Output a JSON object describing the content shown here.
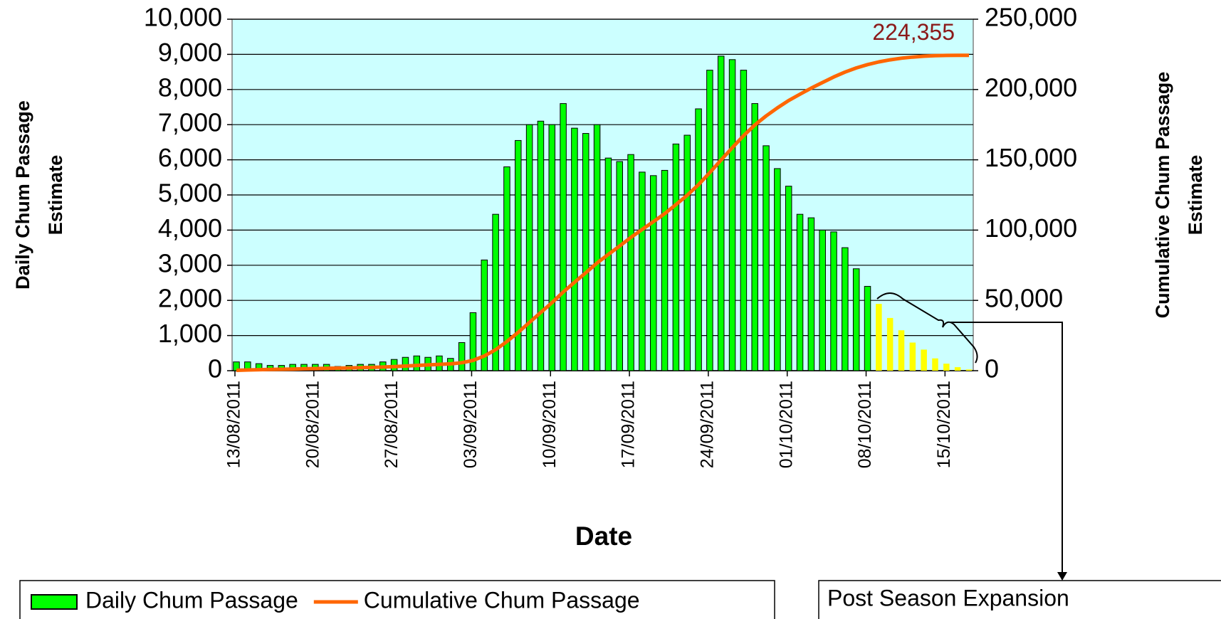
{
  "chart_data": {
    "type": "bar",
    "xlabel": "Date",
    "ylabel": [
      "Daily Chum Passage",
      "Estimate"
    ],
    "y2label": [
      "Cumulative Chum Passage",
      "Estimate"
    ],
    "categories": [
      "13/08/2011",
      null,
      null,
      null,
      null,
      null,
      null,
      "20/08/2011",
      null,
      null,
      null,
      null,
      null,
      null,
      "27/08/2011",
      null,
      null,
      null,
      null,
      null,
      null,
      "03/09/2011",
      null,
      null,
      null,
      null,
      null,
      null,
      "10/09/2011",
      null,
      null,
      null,
      null,
      null,
      null,
      "17/09/2011",
      null,
      null,
      null,
      null,
      null,
      null,
      "24/09/2011",
      null,
      null,
      null,
      null,
      null,
      null,
      "01/10/2011",
      null,
      null,
      null,
      null,
      null,
      null,
      "08/10/2011",
      null,
      null,
      null,
      null,
      null,
      null,
      "15/10/2011",
      null,
      null
    ],
    "series": [
      {
        "name": "Daily Chum Passage",
        "color": "#00ff00",
        "type": "bar",
        "values": [
          250,
          250,
          200,
          150,
          150,
          180,
          180,
          180,
          180,
          120,
          150,
          180,
          180,
          250,
          320,
          380,
          420,
          380,
          420,
          350,
          800,
          1650,
          3150,
          4450,
          5800,
          6550,
          7000,
          7100,
          7000,
          7600,
          6900,
          6750,
          7000,
          6050,
          5950,
          6150,
          5650,
          5550,
          5700,
          6450,
          6700,
          7450,
          8550,
          8950,
          8850,
          8550,
          7600,
          6400,
          5750,
          5250,
          4450,
          4350,
          4000,
          3950,
          3500,
          2900,
          2400,
          null,
          null,
          null,
          null,
          null,
          null,
          null,
          null,
          null
        ]
      },
      {
        "name": "Post Season Expansion",
        "color": "#ffff00",
        "type": "bar",
        "values": [
          null,
          null,
          null,
          null,
          null,
          null,
          null,
          null,
          null,
          null,
          null,
          null,
          null,
          null,
          null,
          null,
          null,
          null,
          null,
          null,
          null,
          null,
          null,
          null,
          null,
          null,
          null,
          null,
          null,
          null,
          null,
          null,
          null,
          null,
          null,
          null,
          null,
          null,
          null,
          null,
          null,
          null,
          null,
          null,
          null,
          null,
          null,
          null,
          null,
          null,
          null,
          null,
          null,
          null,
          null,
          null,
          null,
          1900,
          1500,
          1150,
          800,
          600,
          350,
          200,
          100,
          35
        ]
      },
      {
        "name": "Cumulative Chum Passage",
        "color": "#ff6600",
        "type": "line",
        "axis": "y2",
        "values": [
          250,
          500,
          700,
          850,
          1000,
          1180,
          1360,
          1540,
          1720,
          1840,
          1990,
          2170,
          2350,
          2600,
          2920,
          3300,
          3720,
          4100,
          4520,
          4870,
          5670,
          7320,
          10470,
          14920,
          20720,
          27270,
          34270,
          41370,
          48370,
          55970,
          62870,
          69620,
          76620,
          82670,
          88620,
          94770,
          100420,
          105970,
          111670,
          118120,
          124820,
          132270,
          140820,
          149770,
          158620,
          167170,
          174770,
          181170,
          186920,
          192170,
          196620,
          200970,
          204970,
          208920,
          212420,
          215320,
          217720,
          219620,
          221120,
          222270,
          223070,
          223670,
          224020,
          224220,
          224320,
          224355
        ],
        "end_label": "224,355",
        "end_label_color": "#8b1a1a"
      }
    ],
    "ylim": [
      0,
      10000
    ],
    "yticks": [
      0,
      {
        "value": 1000,
        "label": "1,000"
      },
      {
        "value": 2000,
        "label": "2,000"
      },
      {
        "value": 3000,
        "label": "3,000"
      },
      {
        "value": 4000,
        "label": "4,000"
      },
      {
        "value": 5000,
        "label": "5,000"
      },
      {
        "value": 6000,
        "label": "6,000"
      },
      {
        "value": 7000,
        "label": "7,000"
      },
      {
        "value": 8000,
        "label": "8,000"
      },
      {
        "value": 9000,
        "label": "9,000"
      },
      {
        "value": 10000,
        "label": "10,000"
      }
    ],
    "y2lim": [
      0,
      250000
    ],
    "y2ticks": [
      0,
      {
        "value": 50000,
        "label": "50,000"
      },
      {
        "value": 100000,
        "label": "100,000"
      },
      {
        "value": 150000,
        "label": "150,000"
      },
      {
        "value": 200000,
        "label": "200,000"
      },
      {
        "value": 250000,
        "label": "250,000"
      }
    ],
    "grid": true,
    "background": "#ccffff",
    "legend": "bottom-left"
  }
}
